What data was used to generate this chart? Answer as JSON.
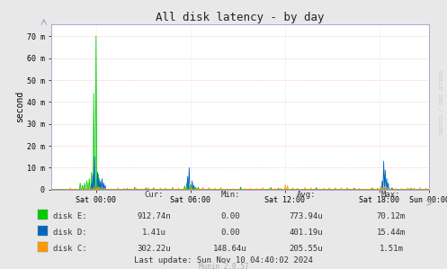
{
  "title": "All disk latency - by day",
  "ylabel": "second",
  "background_color": "#e8e8e8",
  "plot_bg_color": "#ffffff",
  "grid_color": "#ffaaaa",
  "ylim": [
    0,
    0.0755
  ],
  "yticks": [
    0,
    0.01,
    0.02,
    0.03,
    0.04,
    0.05,
    0.06,
    0.07
  ],
  "ytick_labels": [
    "0",
    "10 m",
    "20 m",
    "30 m",
    "40 m",
    "50 m",
    "60 m",
    "70 m"
  ],
  "xtick_labels": [
    "Sat 00:00",
    "Sat 06:00",
    "Sat 12:00",
    "Sat 18:00",
    "Sun 00:00"
  ],
  "xtick_pos": [
    0.118,
    0.368,
    0.618,
    0.868,
    1.0
  ],
  "disk_e_color": "#00cc00",
  "disk_d_color": "#0066bb",
  "disk_c_color": "#ff9900",
  "legend_labels": [
    "disk E:",
    "disk D:",
    "disk C:"
  ],
  "legend_stats_header": [
    "Cur:",
    "Min:",
    "Avg:",
    "Max:"
  ],
  "legend_stats": [
    [
      "912.74n",
      "0.00",
      "773.94u",
      "70.12m"
    ],
    [
      "1.41u",
      "0.00",
      "401.19u",
      "15.44m"
    ],
    [
      "302.22u",
      "148.64u",
      "205.55u",
      "1.51m"
    ]
  ],
  "last_update": "Last update: Sun Nov 10 04:40:02 2024",
  "munin_version": "Munin 2.0.57",
  "watermark": "RRDTOOL / TOBI OETIKER"
}
